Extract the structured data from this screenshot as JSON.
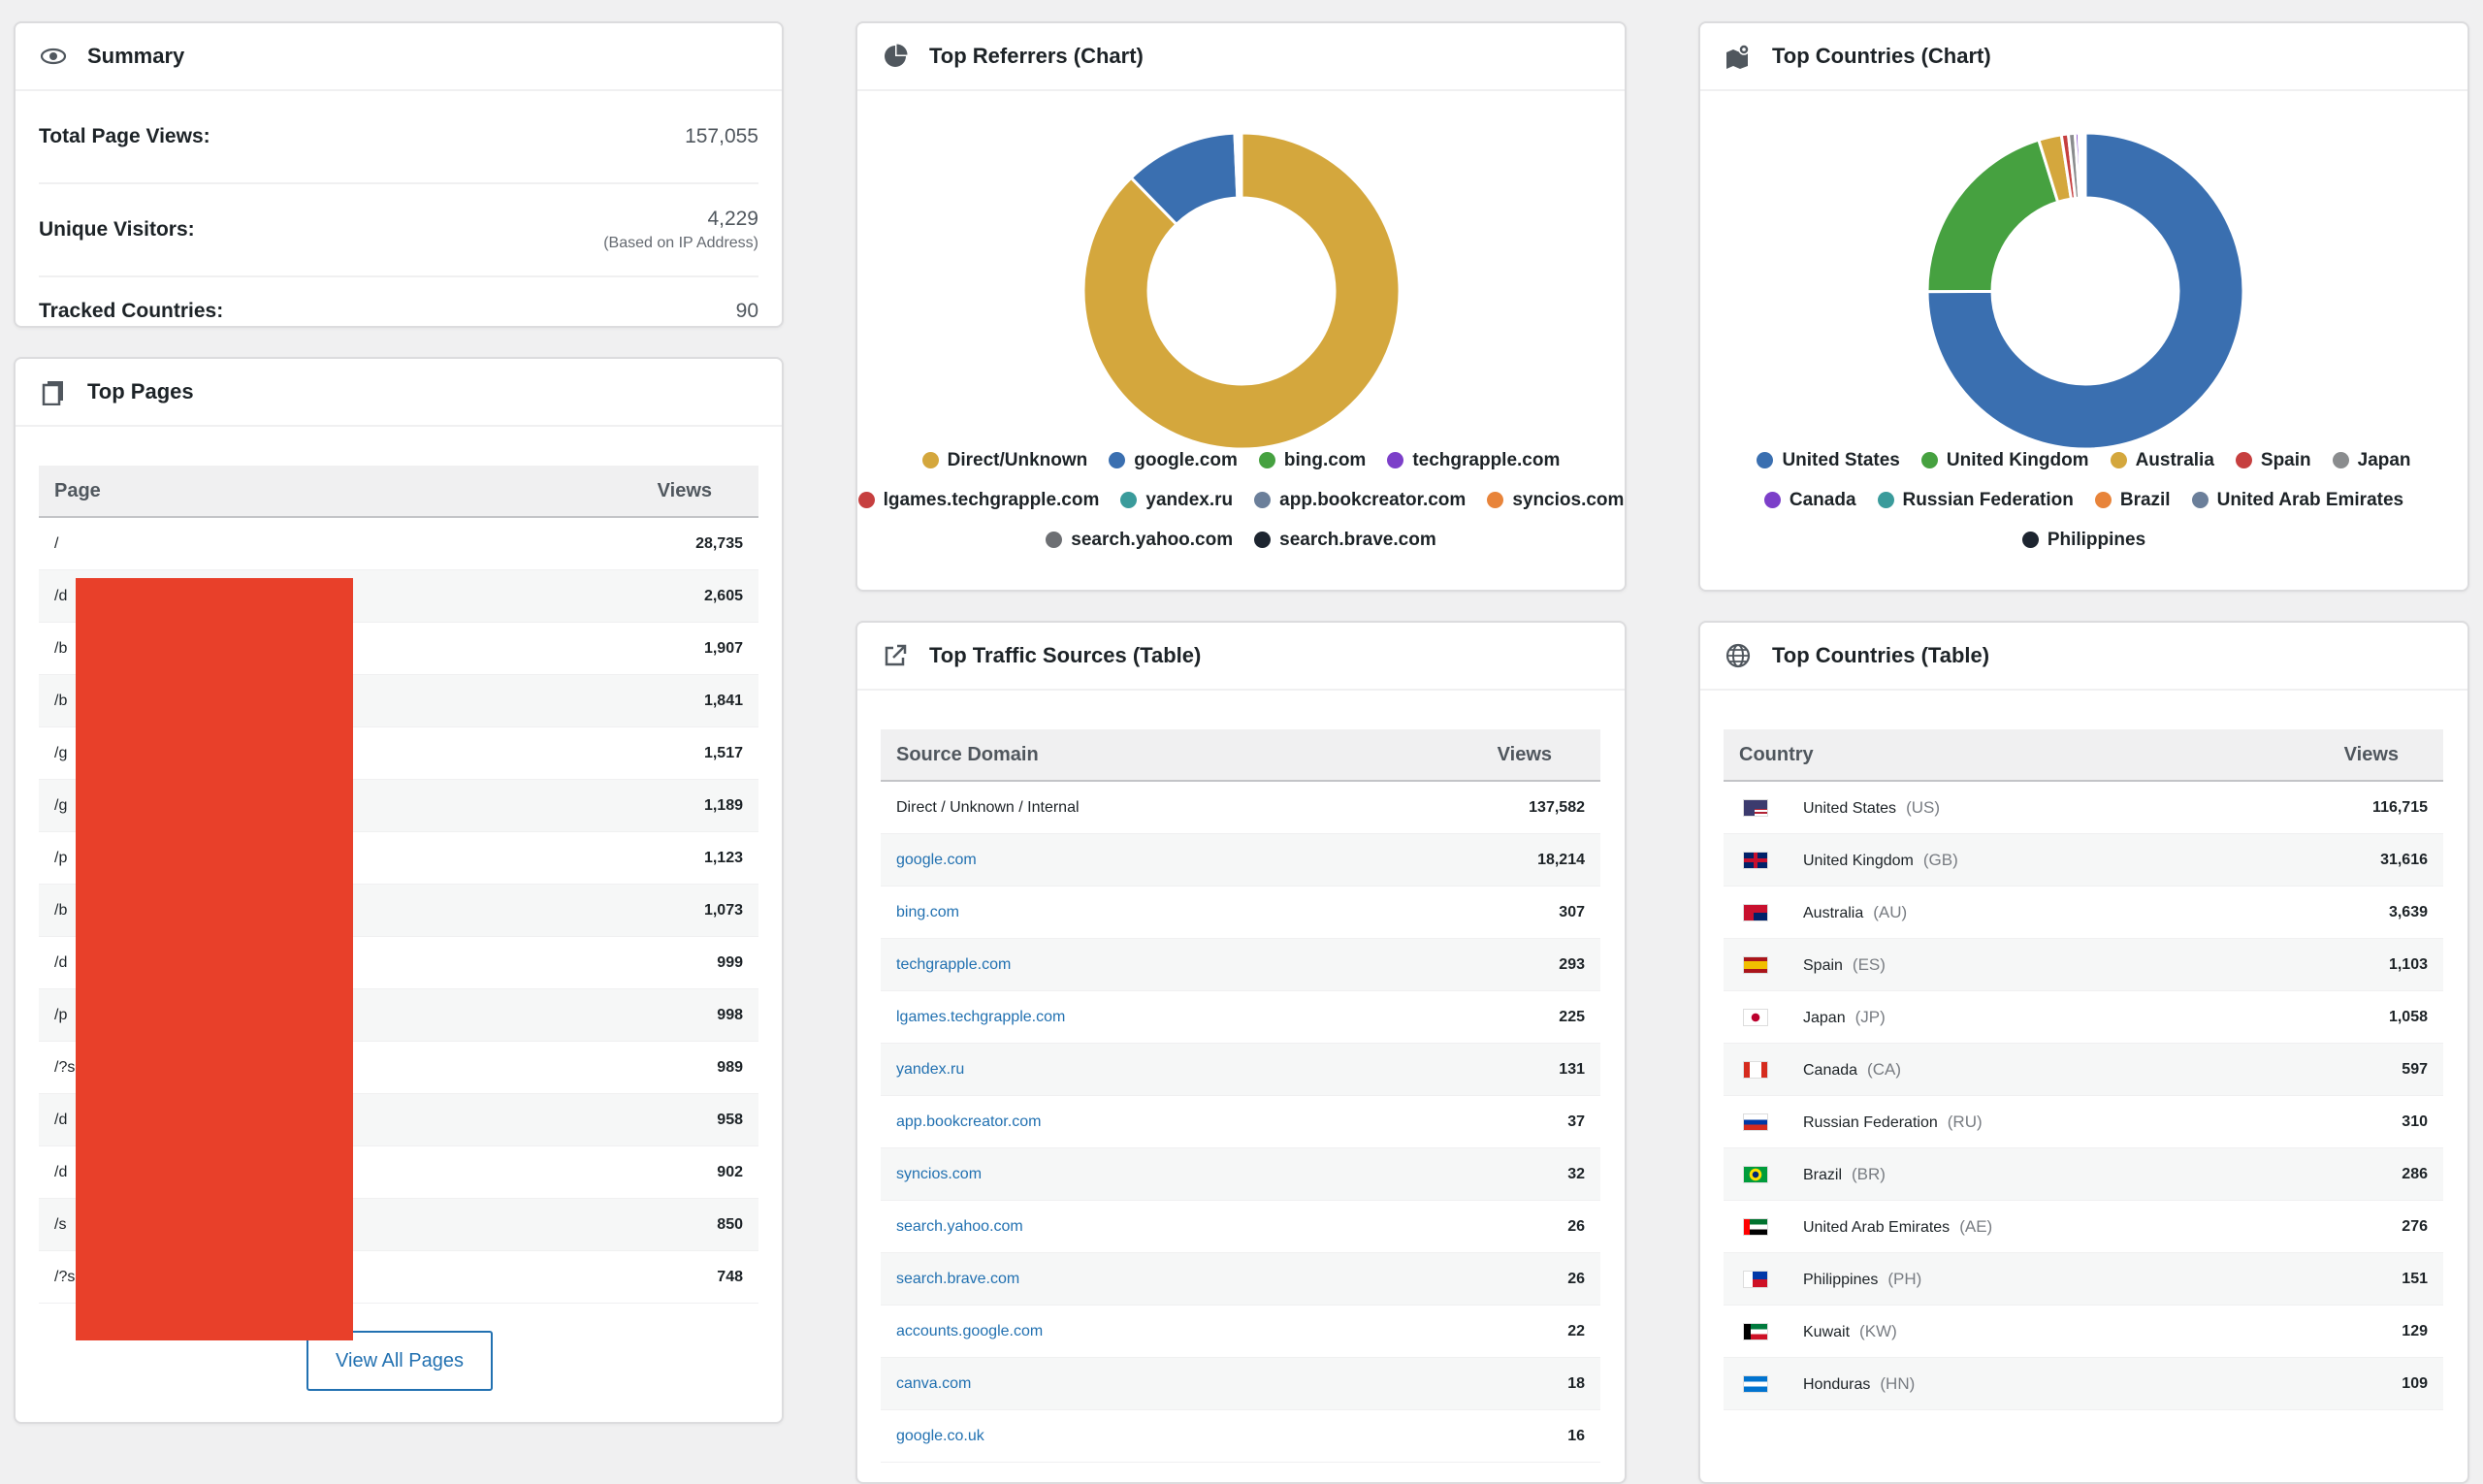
{
  "summary": {
    "title": "Summary",
    "rows": [
      {
        "label": "Total Page Views:",
        "value": "157,055"
      },
      {
        "label": "Unique Visitors:",
        "value": "4,229",
        "note": "(Based on IP Address)"
      },
      {
        "label": "Tracked Countries:",
        "value": "90"
      }
    ]
  },
  "top_pages": {
    "title": "Top Pages",
    "col_page": "Page",
    "col_views": "Views",
    "rows": [
      {
        "page": "/",
        "views": "28,735"
      },
      {
        "page": "/d",
        "views": "2,605"
      },
      {
        "page": "/b",
        "views": "1,907"
      },
      {
        "page": "/b",
        "views": "1,841"
      },
      {
        "page": "/g",
        "views": "1,517"
      },
      {
        "page": "/g",
        "views": "1,189"
      },
      {
        "page": "/p",
        "views": "1,123"
      },
      {
        "page": "/b",
        "views": "1,073"
      },
      {
        "page": "/d",
        "views": "999"
      },
      {
        "page": "/p",
        "views": "998"
      },
      {
        "page": "/?s",
        "views": "989"
      },
      {
        "page": "/d",
        "views": "958"
      },
      {
        "page": "/d",
        "views": "902"
      },
      {
        "page": "/s",
        "views": "850"
      },
      {
        "page": "/?s",
        "views": "748"
      }
    ],
    "button": "View All Pages"
  },
  "referrers_chart": {
    "title": "Top Referrers (Chart)",
    "legend": [
      {
        "label": "Direct/Unknown",
        "color": "#d4a73d"
      },
      {
        "label": "google.com",
        "color": "#3a6fb0"
      },
      {
        "label": "bing.com",
        "color": "#46a140"
      },
      {
        "label": "techgrapple.com",
        "color": "#7c3fc9"
      },
      {
        "label": "lgames.techgrapple.com",
        "color": "#c63f3f"
      },
      {
        "label": "yandex.ru",
        "color": "#3a9b9b"
      },
      {
        "label": "app.bookcreator.com",
        "color": "#6b7f9a"
      },
      {
        "label": "syncios.com",
        "color": "#e8843a"
      },
      {
        "label": "search.yahoo.com",
        "color": "#6d6f73"
      },
      {
        "label": "search.brave.com",
        "color": "#1d2530"
      }
    ]
  },
  "countries_chart": {
    "title": "Top Countries (Chart)",
    "legend": [
      {
        "label": "United States",
        "color": "#3a6fb0"
      },
      {
        "label": "United Kingdom",
        "color": "#46a140"
      },
      {
        "label": "Australia",
        "color": "#d4a73d"
      },
      {
        "label": "Spain",
        "color": "#c63f3f"
      },
      {
        "label": "Japan",
        "color": "#8a8c8e"
      },
      {
        "label": "Canada",
        "color": "#7c3fc9"
      },
      {
        "label": "Russian Federation",
        "color": "#3a9b9b"
      },
      {
        "label": "Brazil",
        "color": "#e8843a"
      },
      {
        "label": "United Arab Emirates",
        "color": "#6b7f9a"
      },
      {
        "label": "Philippines",
        "color": "#1d2530"
      }
    ]
  },
  "chart_data": [
    {
      "type": "pie",
      "categories": [
        "Direct/Unknown",
        "google.com",
        "bing.com",
        "techgrapple.com",
        "lgames.techgrapple.com",
        "yandex.ru",
        "app.bookcreator.com",
        "syncios.com",
        "search.yahoo.com",
        "search.brave.com"
      ],
      "values": [
        137582,
        18214,
        307,
        293,
        225,
        131,
        37,
        32,
        26,
        26
      ]
    },
    {
      "type": "pie",
      "categories": [
        "United States",
        "United Kingdom",
        "Australia",
        "Spain",
        "Japan",
        "Canada",
        "Russian Federation",
        "Brazil",
        "United Arab Emirates",
        "Philippines"
      ],
      "values": [
        116715,
        31616,
        3639,
        1103,
        1058,
        597,
        310,
        286,
        276,
        151
      ]
    }
  ],
  "traffic_sources": {
    "title": "Top Traffic Sources (Table)",
    "col_source": "Source Domain",
    "col_views": "Views",
    "rows": [
      {
        "source": "Direct / Unknown / Internal",
        "views": "137,582",
        "link": false
      },
      {
        "source": "google.com",
        "views": "18,214",
        "link": true
      },
      {
        "source": "bing.com",
        "views": "307",
        "link": true
      },
      {
        "source": "techgrapple.com",
        "views": "293",
        "link": true
      },
      {
        "source": "lgames.techgrapple.com",
        "views": "225",
        "link": true
      },
      {
        "source": "yandex.ru",
        "views": "131",
        "link": true
      },
      {
        "source": "app.bookcreator.com",
        "views": "37",
        "link": true
      },
      {
        "source": "syncios.com",
        "views": "32",
        "link": true
      },
      {
        "source": "search.yahoo.com",
        "views": "26",
        "link": true
      },
      {
        "source": "search.brave.com",
        "views": "26",
        "link": true
      },
      {
        "source": "accounts.google.com",
        "views": "22",
        "link": true
      },
      {
        "source": "canva.com",
        "views": "18",
        "link": true
      },
      {
        "source": "google.co.uk",
        "views": "16",
        "link": true
      }
    ]
  },
  "countries_table": {
    "title": "Top Countries (Table)",
    "col_country": "Country",
    "col_views": "Views",
    "rows": [
      {
        "country": "United States",
        "code": "(US)",
        "views": "116,715",
        "flag": "us"
      },
      {
        "country": "United Kingdom",
        "code": "(GB)",
        "views": "31,616",
        "flag": "gb"
      },
      {
        "country": "Australia",
        "code": "(AU)",
        "views": "3,639",
        "flag": "au"
      },
      {
        "country": "Spain",
        "code": "(ES)",
        "views": "1,103",
        "flag": "es"
      },
      {
        "country": "Japan",
        "code": "(JP)",
        "views": "1,058",
        "flag": "jp"
      },
      {
        "country": "Canada",
        "code": "(CA)",
        "views": "597",
        "flag": "ca"
      },
      {
        "country": "Russian Federation",
        "code": "(RU)",
        "views": "310",
        "flag": "ru"
      },
      {
        "country": "Brazil",
        "code": "(BR)",
        "views": "286",
        "flag": "br"
      },
      {
        "country": "United Arab Emirates",
        "code": "(AE)",
        "views": "276",
        "flag": "ae"
      },
      {
        "country": "Philippines",
        "code": "(PH)",
        "views": "151",
        "flag": "ph"
      },
      {
        "country": "Kuwait",
        "code": "(KW)",
        "views": "129",
        "flag": "kw"
      },
      {
        "country": "Honduras",
        "code": "(HN)",
        "views": "109",
        "flag": "hn"
      }
    ]
  }
}
